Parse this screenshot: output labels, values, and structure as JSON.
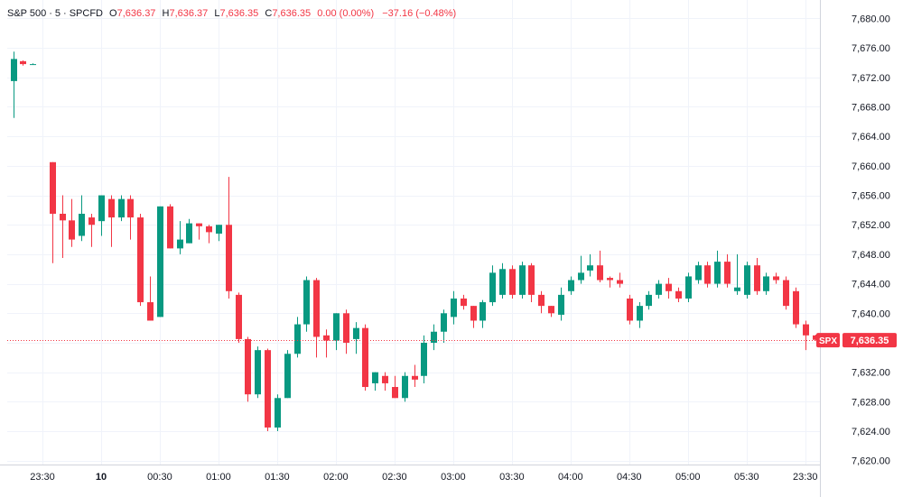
{
  "legend": {
    "symbol": "S&P 500",
    "interval": "5",
    "source": "SPCFD",
    "o_label": "O",
    "o_value": "7,636.37",
    "h_label": "H",
    "h_value": "7,636.37",
    "l_label": "L",
    "l_value": "7,636.35",
    "c_label": "C",
    "c_value": "7,636.35",
    "change": "0.00 (0.00%)",
    "change2": "−37.16 (−0.48%)"
  },
  "last_price": {
    "ticker": "SPX",
    "value": "7,636.35"
  },
  "colors": {
    "up": "#089981",
    "down": "#f23645",
    "text": "#131722",
    "grid": "#f0f3fa",
    "border": "#d1d4dc"
  },
  "chart_data": {
    "type": "candlestick",
    "ylim": [
      7618.5,
      7682.5
    ],
    "y_ticks": [
      "7,620.00",
      "7,624.00",
      "7,628.00",
      "7,632.00",
      "7,636.00",
      "7,640.00",
      "7,644.00",
      "7,648.00",
      "7,652.00",
      "7,656.00",
      "7,660.00",
      "7,664.00",
      "7,668.00",
      "7,672.00",
      "7,676.00",
      "7,680.00"
    ],
    "y_tick_values": [
      7620,
      7624,
      7628,
      7632,
      7636,
      7640,
      7644,
      7648,
      7652,
      7656,
      7660,
      7664,
      7668,
      7672,
      7676,
      7680
    ],
    "x_ticks": [
      "23:30",
      "10",
      "00:30",
      "01:00",
      "01:30",
      "02:00",
      "02:30",
      "03:00",
      "03:30",
      "04:00",
      "04:30",
      "05:00",
      "05:30",
      "23:30"
    ],
    "x_tick_bars": [
      3,
      9,
      15,
      21,
      27,
      33,
      39,
      45,
      51,
      57,
      63,
      69,
      75,
      81
    ],
    "last_value": 7636.35,
    "candles": [
      [
        7671.5,
        7674.5,
        7666.5,
        7675.5
      ],
      [
        7674.2,
        7673.8,
        7673.6,
        7674.3
      ],
      [
        7673.8,
        7673.8,
        7673.7,
        7673.9
      ],
      null,
      [
        7660.5,
        7653.5,
        7646.8,
        7660.5
      ],
      [
        7653.5,
        7652.6,
        7647.5,
        7656.0
      ],
      [
        7652.6,
        7650.0,
        7649.0,
        7655.5
      ],
      [
        7650.5,
        7653.5,
        7649.8,
        7656.0
      ],
      [
        7653.0,
        7652.0,
        7649.0,
        7653.5
      ],
      [
        7652.5,
        7656.0,
        7650.5,
        7656.0
      ],
      [
        7655.5,
        7653.0,
        7649.0,
        7656.0
      ],
      [
        7653.0,
        7655.5,
        7652.5,
        7656.0
      ],
      [
        7655.5,
        7653.0,
        7650.0,
        7656.0
      ],
      [
        7653.0,
        7641.5,
        7641.0,
        7653.5
      ],
      [
        7641.5,
        7639.0,
        7639.0,
        7645.0
      ],
      [
        7639.5,
        7654.5,
        7639.5,
        7654.5
      ],
      [
        7654.5,
        7648.8,
        7648.8,
        7654.8
      ],
      [
        7648.8,
        7650.0,
        7648.0,
        7652.5
      ],
      [
        7649.5,
        7652.2,
        7649.5,
        7652.8
      ],
      [
        7652.2,
        7651.8,
        7650.0,
        7652.2
      ],
      [
        7651.8,
        7651.0,
        7649.5,
        7652.0
      ],
      [
        7650.8,
        7652.0,
        7649.8,
        7652.0
      ],
      [
        7652.0,
        7643.0,
        7642.0,
        7658.5
      ],
      [
        7642.5,
        7636.5,
        7636.0,
        7642.8
      ],
      [
        7636.5,
        7629.0,
        7628.0,
        7636.8
      ],
      [
        7629.0,
        7635.0,
        7628.5,
        7635.5
      ],
      [
        7635.0,
        7624.5,
        7624.0,
        7635.2
      ],
      [
        7624.5,
        7628.5,
        7624.0,
        7629.0
      ],
      [
        7628.5,
        7634.5,
        7628.5,
        7635.0
      ],
      [
        7634.5,
        7638.5,
        7634.0,
        7639.5
      ],
      [
        7638.5,
        7644.5,
        7637.5,
        7645.0
      ],
      [
        7644.5,
        7636.8,
        7634.0,
        7644.8
      ],
      [
        7637.0,
        7636.3,
        7634.0,
        7637.8
      ],
      [
        7636.3,
        7640.0,
        7635.0,
        7640.0
      ],
      [
        7640.0,
        7636.0,
        7634.5,
        7640.5
      ],
      [
        7636.5,
        7638.0,
        7634.5,
        7638.8
      ],
      [
        7638.0,
        7630.0,
        7629.5,
        7638.5
      ],
      [
        7630.5,
        7632.0,
        7629.5,
        7632.0
      ],
      [
        7631.5,
        7630.5,
        7629.5,
        7632.0
      ],
      [
        7630.0,
        7628.5,
        7628.5,
        7631.5
      ],
      [
        7628.5,
        7631.5,
        7628.0,
        7632.0
      ],
      [
        7631.5,
        7631.0,
        7630.0,
        7633.0
      ],
      [
        7631.5,
        7636.0,
        7630.5,
        7637.0
      ],
      [
        7636.0,
        7637.5,
        7635.0,
        7638.5
      ],
      [
        7637.5,
        7640.0,
        7636.0,
        7640.5
      ],
      [
        7639.5,
        7642.0,
        7638.5,
        7643.0
      ],
      [
        7642.0,
        7641.0,
        7640.5,
        7642.5
      ],
      [
        7641.0,
        7639.0,
        7638.0,
        7641.0
      ],
      [
        7639.0,
        7641.5,
        7638.0,
        7641.8
      ],
      [
        7641.5,
        7645.5,
        7641.0,
        7646.5
      ],
      [
        7642.5,
        7646.0,
        7642.0,
        7646.8
      ],
      [
        7646.0,
        7642.5,
        7642.0,
        7646.5
      ],
      [
        7642.5,
        7646.5,
        7642.0,
        7647.0
      ],
      [
        7646.5,
        7642.5,
        7641.5,
        7646.8
      ],
      [
        7642.5,
        7641.0,
        7640.0,
        7643.0
      ],
      [
        7641.0,
        7640.0,
        7639.5,
        7641.0
      ],
      [
        7639.8,
        7642.5,
        7639.0,
        7643.5
      ],
      [
        7643.0,
        7644.5,
        7642.5,
        7645.0
      ],
      [
        7644.5,
        7645.5,
        7644.0,
        7647.8
      ],
      [
        7645.8,
        7646.5,
        7645.0,
        7648.0
      ],
      [
        7646.5,
        7644.5,
        7644.2,
        7648.5
      ],
      [
        7644.8,
        7644.5,
        7643.5,
        7645.0
      ],
      [
        7644.5,
        7644.0,
        7643.5,
        7645.5
      ],
      [
        7642.0,
        7639.0,
        7638.5,
        7642.5
      ],
      [
        7639.0,
        7641.0,
        7638.0,
        7641.5
      ],
      [
        7641.0,
        7642.5,
        7640.5,
        7643.0
      ],
      [
        7642.5,
        7644.0,
        7642.0,
        7644.5
      ],
      [
        7644.0,
        7643.0,
        7642.0,
        7644.8
      ],
      [
        7643.0,
        7642.0,
        7641.5,
        7643.5
      ],
      [
        7642.0,
        7645.0,
        7641.5,
        7645.5
      ],
      [
        7644.5,
        7646.5,
        7644.0,
        7647.0
      ],
      [
        7646.5,
        7644.0,
        7643.5,
        7647.0
      ],
      [
        7644.0,
        7647.0,
        7643.5,
        7648.5
      ],
      [
        7647.0,
        7644.0,
        7643.5,
        7648.0
      ],
      [
        7643.0,
        7643.5,
        7642.5,
        7648.0
      ],
      [
        7642.5,
        7646.5,
        7642.0,
        7647.0
      ],
      [
        7646.5,
        7643.0,
        7642.5,
        7647.5
      ],
      [
        7643.0,
        7645.0,
        7642.5,
        7645.5
      ],
      [
        7645.0,
        7644.5,
        7644.0,
        7645.5
      ],
      [
        7644.5,
        7641.0,
        7640.5,
        7645.0
      ],
      [
        7643.0,
        7638.5,
        7638.0,
        7643.5
      ],
      [
        7638.5,
        7637.0,
        7635.0,
        7639.0
      ],
      [
        7637.0,
        7636.4,
        7636.3,
        7637.1
      ]
    ]
  }
}
